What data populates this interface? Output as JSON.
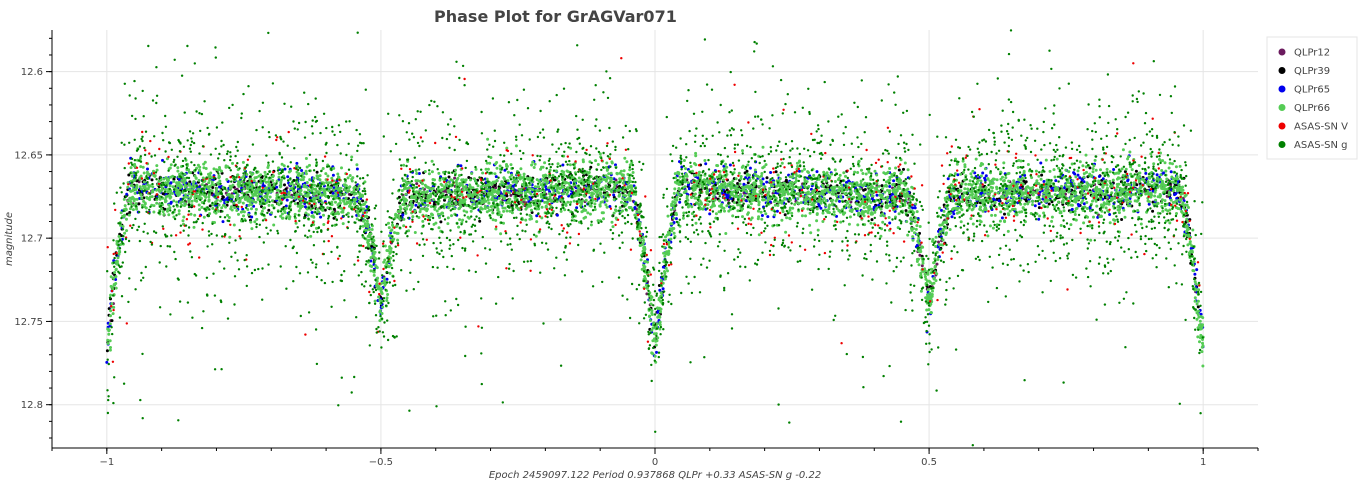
{
  "chart_data": {
    "type": "scatter",
    "title": "Phase Plot for GrAGVar071",
    "xlabel": "Epoch 2459097.122   Period 0.937868    QLPr +0.33    ASAS-SN g -0.22",
    "ylabel": "magnitude",
    "xlim": [
      -1.1,
      1.1
    ],
    "ylim": [
      12.826,
      12.575
    ],
    "y_inverted": true,
    "grid": true,
    "legend_position": "top-right",
    "x_ticks": [
      -1,
      -0.5,
      0,
      0.5,
      1
    ],
    "x_tick_labels": [
      "−1",
      "−0.5",
      "0",
      "0.5",
      "1"
    ],
    "y_ticks": [
      12.6,
      12.65,
      12.7,
      12.75,
      12.8
    ],
    "y_tick_labels": [
      "12.6",
      "12.65",
      "12.7",
      "12.75",
      "12.8"
    ],
    "light_curve": {
      "description_units": "phase -> magnitude",
      "primary_min": {
        "phase": 0.0,
        "magnitude": 12.765
      },
      "secondary_min": {
        "phase": 0.5,
        "magnitude": 12.735
      },
      "max_level_phase_0.05_to_0.45": 12.67,
      "max_level_phase_0.55_to_0.95": 12.675
    },
    "series": [
      {
        "name": "QLPr12",
        "color": "#6b1a5e",
        "count": 300,
        "scatter": 0.004
      },
      {
        "name": "QLPr39",
        "color": "#000000",
        "count": 1000,
        "scatter": 0.006
      },
      {
        "name": "QLPr65",
        "color": "#0000ee",
        "count": 1000,
        "scatter": 0.007
      },
      {
        "name": "QLPr66",
        "color": "#55cc55",
        "count": 4500,
        "scatter": 0.0085
      },
      {
        "name": "ASAS-SN V",
        "color": "#ee0000",
        "count": 450,
        "scatter": 0.018
      },
      {
        "name": "ASAS-SN g",
        "color": "#008000",
        "count": 3000,
        "scatter": 0.026
      }
    ]
  }
}
